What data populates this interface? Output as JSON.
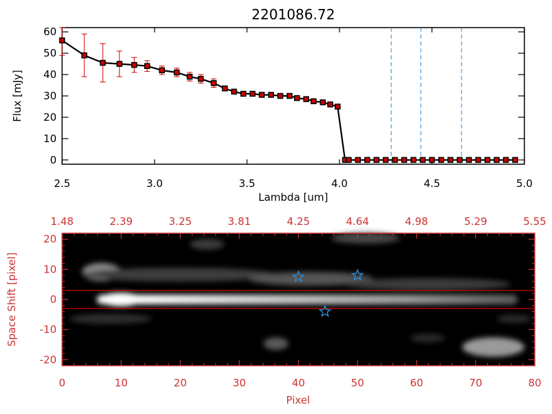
{
  "chart_data": [
    {
      "type": "line",
      "title": "2201086.72",
      "xlabel": "Lambda [um]",
      "ylabel": "Flux [mJy]",
      "xlim": [
        2.5,
        5.0
      ],
      "ylim": [
        -2,
        62
      ],
      "xticks": [
        "2.5",
        "3.0",
        "3.5",
        "4.0",
        "4.5",
        "5.0"
      ],
      "yticks": [
        "0",
        "10",
        "20",
        "30",
        "40",
        "50",
        "60"
      ],
      "grid": false,
      "series": [
        {
          "x": [
            2.5,
            2.62,
            2.72,
            2.81,
            2.89,
            2.96,
            3.04,
            3.12,
            3.19,
            3.25,
            3.32,
            3.38,
            3.43,
            3.48,
            3.53,
            3.58,
            3.63,
            3.68,
            3.73,
            3.77,
            3.82,
            3.86,
            3.91,
            3.95,
            3.99,
            4.03,
            4.05,
            4.1,
            4.15,
            4.2,
            4.25,
            4.3,
            4.35,
            4.4,
            4.45,
            4.5,
            4.55,
            4.6,
            4.65,
            4.7,
            4.75,
            4.8,
            4.85,
            4.9,
            4.95
          ],
          "y": [
            56,
            49,
            45.5,
            45,
            44.5,
            44,
            42,
            41,
            39,
            38,
            36,
            33.5,
            32,
            31,
            31,
            30.5,
            30.5,
            30,
            30,
            29,
            28.5,
            27.5,
            27,
            26,
            25,
            0,
            0,
            0,
            0,
            0,
            0,
            0,
            0,
            0,
            0,
            0,
            0,
            0,
            0,
            0,
            0,
            0,
            0,
            0,
            0
          ],
          "yerr": [
            7,
            10,
            9,
            6,
            3.5,
            2.5,
            2,
            2,
            2,
            2,
            2,
            0,
            0,
            0,
            0,
            0,
            0,
            0,
            0,
            0,
            0,
            0,
            0,
            0,
            0,
            0,
            0,
            0,
            0,
            0,
            0,
            0,
            0,
            0,
            0,
            0,
            0,
            0,
            0,
            0,
            0,
            0,
            0,
            0,
            0
          ],
          "color": "#000000",
          "marker_color": "#cc0000",
          "errorbar_color": "#cc0000"
        }
      ],
      "vertical_lines_x": [
        4.28,
        4.44,
        4.66
      ],
      "vertical_line_color": "#2b8ad6",
      "baseline_color": "#cc0000"
    },
    {
      "type": "heatmap",
      "xlabel": "Pixel",
      "ylabel": "Space Shift [pixel]",
      "xlim": [
        0,
        80
      ],
      "ylim": [
        -22,
        22
      ],
      "xticks": [
        "0",
        "10",
        "20",
        "30",
        "40",
        "50",
        "60",
        "70",
        "80"
      ],
      "yticks": [
        "-20",
        "-10",
        "0",
        "10",
        "20"
      ],
      "top_axis_labels": [
        "1.48",
        "2.39",
        "3.25",
        "3.81",
        "4.25",
        "4.64",
        "4.98",
        "5.29",
        "5.55"
      ],
      "horizontal_lines_y": [
        3,
        -3
      ],
      "horizontal_line_color": "#cc0000",
      "axis_color": "#cc3333",
      "stars": [
        {
          "x": 40,
          "y": 7.5
        },
        {
          "x": 50,
          "y": 8
        },
        {
          "x": 44.5,
          "y": -4
        }
      ],
      "star_color": "#2b8ad6"
    }
  ]
}
